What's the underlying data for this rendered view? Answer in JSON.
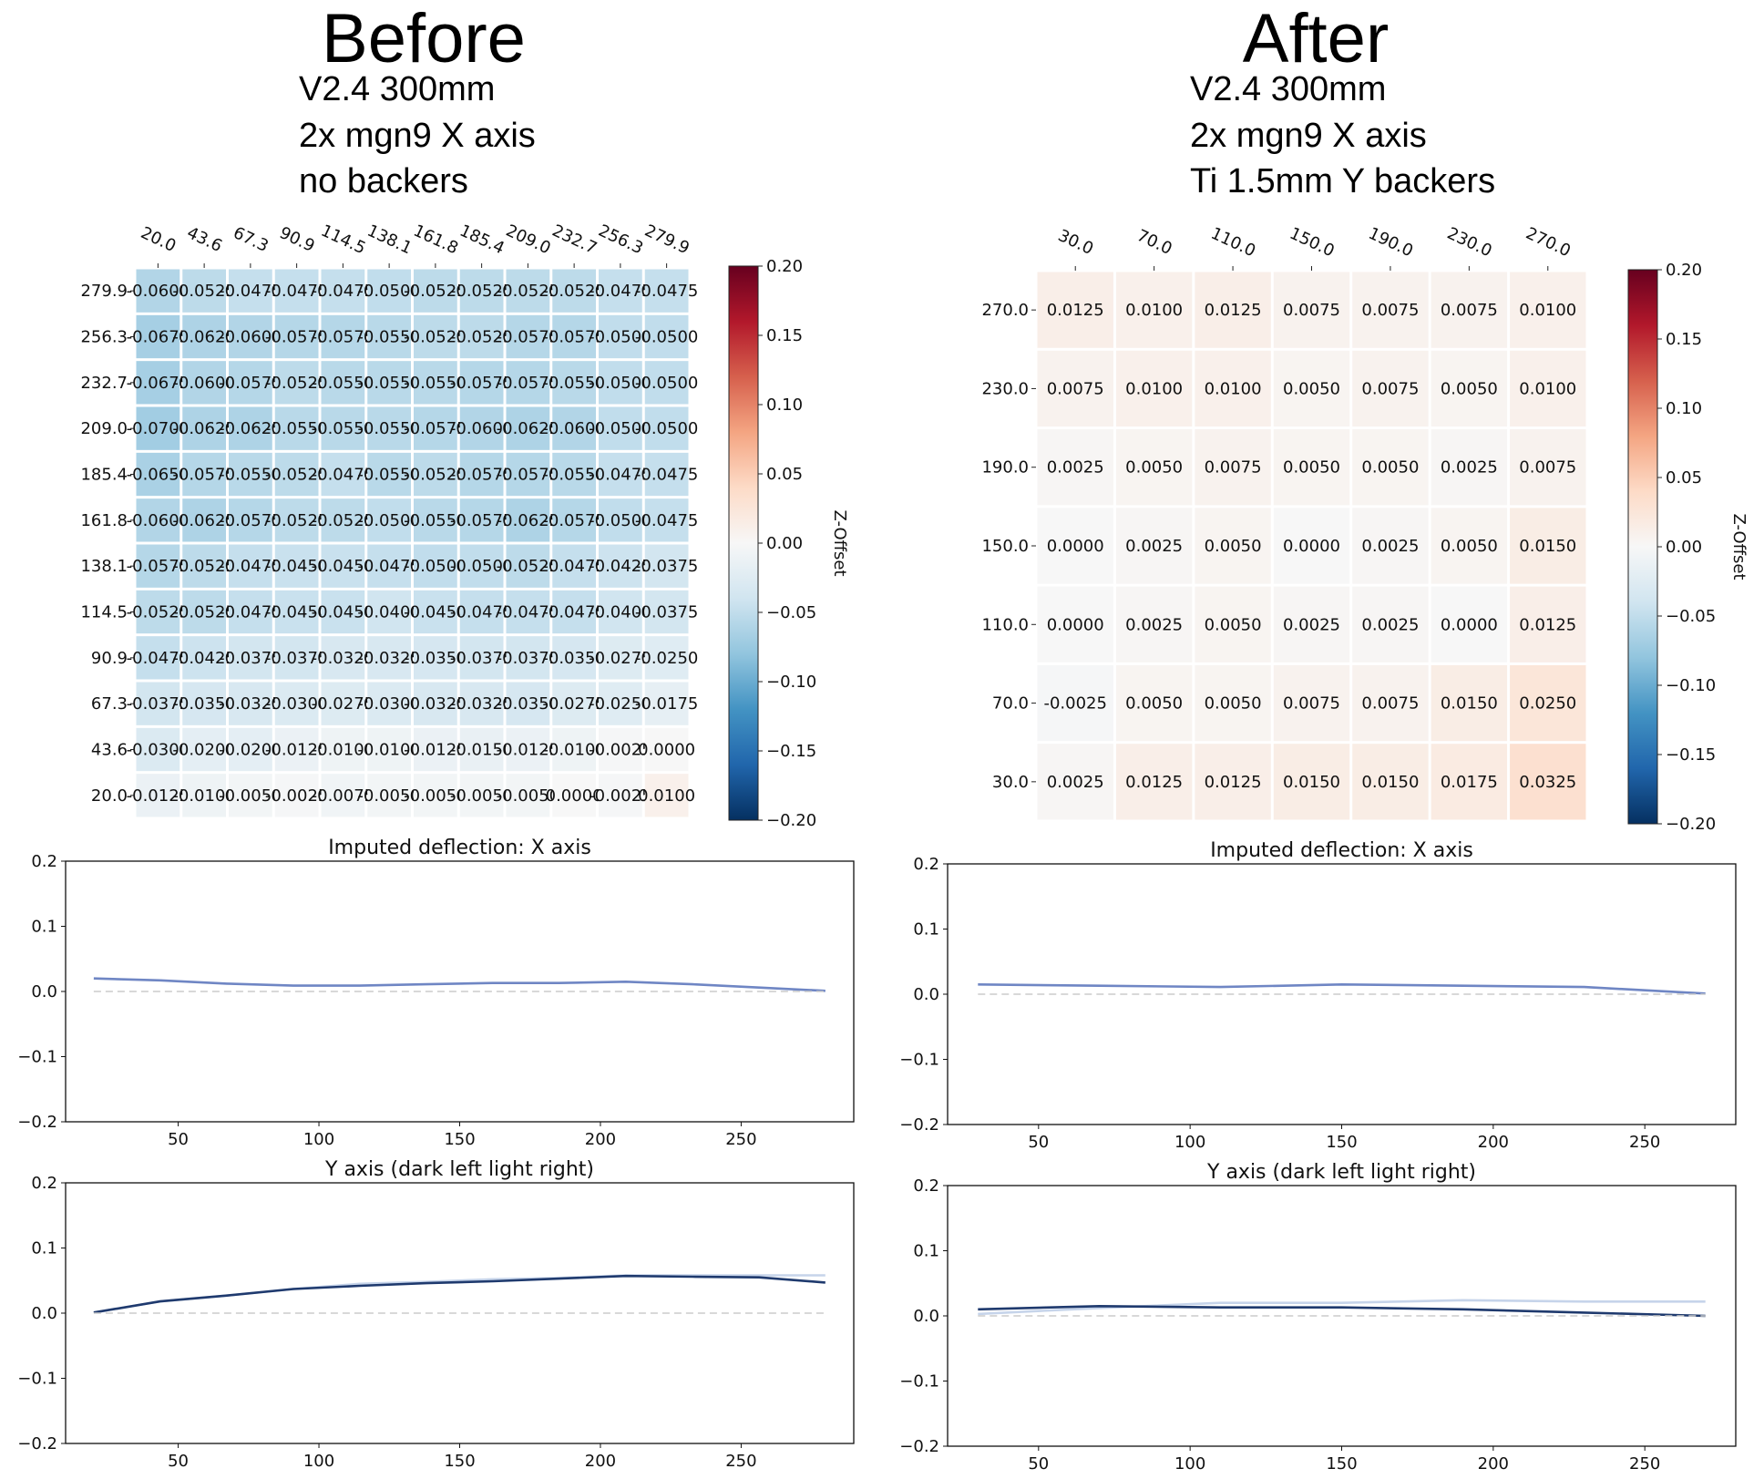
{
  "panels": [
    {
      "title": "Before",
      "subtitle": [
        "V2.4 300mm",
        "2x mgn9 X axis",
        "no backers"
      ]
    },
    {
      "title": "After",
      "subtitle": [
        "V2.4 300mm",
        "2x mgn9 X axis",
        "Ti 1.5mm Y backers"
      ]
    }
  ],
  "chart_data": [
    {
      "type": "heatmap",
      "title": "",
      "x_ticks": [
        "20.0",
        "43.6",
        "67.3",
        "90.9",
        "114.5",
        "138.1",
        "161.8",
        "185.4",
        "209.0",
        "232.7",
        "256.3",
        "279.9"
      ],
      "y_ticks": [
        "279.9",
        "256.3",
        "232.7",
        "209.0",
        "185.4",
        "161.8",
        "138.1",
        "114.5",
        "90.9",
        "67.3",
        "43.6",
        "20.0"
      ],
      "values": [
        [
          -0.06,
          -0.0525,
          -0.0475,
          -0.0475,
          -0.0475,
          -0.05,
          -0.0525,
          -0.0525,
          -0.0525,
          -0.0525,
          -0.0475,
          -0.0475
        ],
        [
          -0.0675,
          -0.0625,
          -0.06,
          -0.0575,
          -0.0575,
          -0.055,
          -0.0525,
          -0.0525,
          -0.0575,
          -0.0575,
          -0.05,
          -0.05
        ],
        [
          -0.0675,
          -0.06,
          -0.0575,
          -0.0525,
          -0.055,
          -0.055,
          -0.055,
          -0.0575,
          -0.0575,
          -0.055,
          -0.05,
          -0.05
        ],
        [
          -0.07,
          -0.0625,
          -0.0625,
          -0.055,
          -0.055,
          -0.055,
          -0.0575,
          -0.06,
          -0.0625,
          -0.06,
          -0.05,
          -0.05
        ],
        [
          -0.065,
          -0.0575,
          -0.055,
          -0.0525,
          -0.0475,
          -0.055,
          -0.0525,
          -0.0575,
          -0.0575,
          -0.055,
          -0.0475,
          -0.0475
        ],
        [
          -0.06,
          -0.0625,
          -0.0575,
          -0.0525,
          -0.0525,
          -0.05,
          -0.055,
          -0.0575,
          -0.0625,
          -0.0575,
          -0.05,
          -0.0475
        ],
        [
          -0.0575,
          -0.0525,
          -0.0475,
          -0.045,
          -0.045,
          -0.0475,
          -0.05,
          -0.05,
          -0.0525,
          -0.0475,
          -0.0425,
          -0.0375
        ],
        [
          -0.0525,
          -0.0525,
          -0.0475,
          -0.045,
          -0.045,
          -0.04,
          -0.045,
          -0.0475,
          -0.0475,
          -0.0475,
          -0.04,
          -0.0375
        ],
        [
          -0.0475,
          -0.0425,
          -0.0375,
          -0.0375,
          -0.0325,
          -0.0325,
          -0.035,
          -0.0375,
          -0.0375,
          -0.035,
          -0.0275,
          -0.025
        ],
        [
          -0.0375,
          -0.035,
          -0.0325,
          -0.03,
          -0.0275,
          -0.03,
          -0.0325,
          -0.0325,
          -0.035,
          -0.0275,
          -0.025,
          -0.0175
        ],
        [
          -0.03,
          -0.02,
          -0.02,
          -0.0125,
          -0.01,
          -0.01,
          -0.0125,
          -0.015,
          -0.0125,
          -0.01,
          -0.0025,
          0.0
        ],
        [
          -0.0125,
          -0.01,
          -0.005,
          -0.0025,
          -0.0075,
          -0.005,
          -0.005,
          -0.005,
          -0.005,
          0.0,
          -0.0025,
          0.01
        ]
      ],
      "vmin": -0.2,
      "vmax": 0.2,
      "colorbar_label": "Z-Offset",
      "colorbar_ticks": [
        "0.20",
        "0.15",
        "0.10",
        "0.05",
        "0.00",
        "−0.05",
        "−0.10",
        "−0.15",
        "−0.20"
      ]
    },
    {
      "type": "heatmap",
      "title": "",
      "x_ticks": [
        "30.0",
        "70.0",
        "110.0",
        "150.0",
        "190.0",
        "230.0",
        "270.0"
      ],
      "y_ticks": [
        "270.0",
        "230.0",
        "190.0",
        "150.0",
        "110.0",
        "70.0",
        "30.0"
      ],
      "values": [
        [
          0.0125,
          0.01,
          0.0125,
          0.0075,
          0.0075,
          0.0075,
          0.01
        ],
        [
          0.0075,
          0.01,
          0.01,
          0.005,
          0.0075,
          0.005,
          0.01
        ],
        [
          0.0025,
          0.005,
          0.0075,
          0.005,
          0.005,
          0.0025,
          0.0075
        ],
        [
          0.0,
          0.0025,
          0.005,
          0.0,
          0.0025,
          0.005,
          0.015
        ],
        [
          0.0,
          0.0025,
          0.005,
          0.0025,
          0.0025,
          0.0,
          0.0125
        ],
        [
          -0.0025,
          0.005,
          0.005,
          0.0075,
          0.0075,
          0.015,
          0.025
        ],
        [
          0.0025,
          0.0125,
          0.0125,
          0.015,
          0.015,
          0.0175,
          0.0325
        ]
      ],
      "vmin": -0.2,
      "vmax": 0.2,
      "colorbar_label": "Z-Offset",
      "colorbar_ticks": [
        "0.20",
        "0.15",
        "0.10",
        "0.05",
        "0.00",
        "−0.05",
        "−0.10",
        "−0.15",
        "−0.20"
      ]
    },
    {
      "type": "line",
      "title": "Imputed deflection: X axis",
      "xlim": [
        10,
        290
      ],
      "ylim": [
        -0.2,
        0.2
      ],
      "x_ticks": [
        50,
        100,
        150,
        200,
        250
      ],
      "y_ticks": [
        "0.2",
        "0.1",
        "0.0",
        "−0.1",
        "−0.2"
      ],
      "series": [
        {
          "x": [
            20,
            43.6,
            67.3,
            90.9,
            114.5,
            138.1,
            161.8,
            185.4,
            209,
            232.7,
            256.3,
            279.9
          ],
          "values": [
            0.02,
            0.017,
            0.012,
            0.009,
            0.009,
            0.011,
            0.013,
            0.013,
            0.015,
            0.011,
            0.006,
            0.001
          ],
          "color": "#6f86c4"
        },
        {
          "x": [
            20,
            43.6,
            67.3,
            90.9,
            114.5,
            138.1,
            161.8,
            185.4,
            209,
            232.7,
            256.3,
            279.9
          ],
          "values": [
            0,
            0,
            0,
            0,
            0,
            0,
            0,
            0,
            0,
            0,
            0,
            0
          ],
          "color": "#cccccc",
          "dashed": true
        }
      ]
    },
    {
      "type": "line",
      "title": "Imputed deflection: X axis",
      "xlim": [
        20,
        280
      ],
      "ylim": [
        -0.2,
        0.2
      ],
      "x_ticks": [
        50,
        100,
        150,
        200,
        250
      ],
      "y_ticks": [
        "0.2",
        "0.1",
        "0.0",
        "−0.1",
        "−0.2"
      ],
      "series": [
        {
          "x": [
            30,
            70,
            110,
            150,
            190,
            230,
            270
          ],
          "values": [
            0.015,
            0.013,
            0.011,
            0.015,
            0.013,
            0.011,
            0.001
          ],
          "color": "#6f86c4"
        },
        {
          "x": [
            30,
            70,
            110,
            150,
            190,
            230,
            270
          ],
          "values": [
            0,
            0,
            0,
            0,
            0,
            0,
            0
          ],
          "color": "#cccccc",
          "dashed": true
        }
      ]
    },
    {
      "type": "line",
      "title": "Y axis (dark left light right)",
      "xlim": [
        10,
        290
      ],
      "ylim": [
        -0.2,
        0.2
      ],
      "x_ticks": [
        50,
        100,
        150,
        200,
        250
      ],
      "y_ticks": [
        "0.2",
        "0.1",
        "0.0",
        "−0.1",
        "−0.2"
      ],
      "series": [
        {
          "x": [
            20,
            43.6,
            67.3,
            90.9,
            114.5,
            138.1,
            161.8,
            185.4,
            209,
            232.7,
            256.3,
            279.9
          ],
          "values": [
            0.001,
            0.018,
            0.027,
            0.037,
            0.045,
            0.048,
            0.052,
            0.054,
            0.058,
            0.058,
            0.058,
            0.058
          ],
          "color": "#c6d4ea"
        },
        {
          "x": [
            20,
            43.6,
            67.3,
            90.9,
            114.5,
            138.1,
            161.8,
            185.4,
            209,
            232.7,
            256.3,
            279.9
          ],
          "values": [
            0.001,
            0.018,
            0.027,
            0.037,
            0.042,
            0.046,
            0.049,
            0.053,
            0.057,
            0.056,
            0.055,
            0.047
          ],
          "color": "#1f3a6e"
        },
        {
          "x": [
            20,
            279.9
          ],
          "values": [
            0,
            0
          ],
          "color": "#cccccc",
          "dashed": true
        }
      ]
    },
    {
      "type": "line",
      "title": "Y axis (dark left light right)",
      "xlim": [
        20,
        280
      ],
      "ylim": [
        -0.2,
        0.2
      ],
      "x_ticks": [
        50,
        100,
        150,
        200,
        250
      ],
      "y_ticks": [
        "0.2",
        "0.1",
        "0.0",
        "−0.1",
        "−0.2"
      ],
      "series": [
        {
          "x": [
            30,
            70,
            110,
            150,
            190,
            230,
            270
          ],
          "values": [
            0.003,
            0.012,
            0.02,
            0.02,
            0.024,
            0.022,
            0.022
          ],
          "color": "#c6d4ea"
        },
        {
          "x": [
            30,
            70,
            110,
            150,
            190,
            230,
            270
          ],
          "values": [
            0.01,
            0.015,
            0.013,
            0.013,
            0.01,
            0.005,
            0.0
          ],
          "color": "#1f3a6e"
        },
        {
          "x": [
            30,
            270
          ],
          "values": [
            0,
            0
          ],
          "color": "#cccccc",
          "dashed": true
        }
      ]
    }
  ]
}
